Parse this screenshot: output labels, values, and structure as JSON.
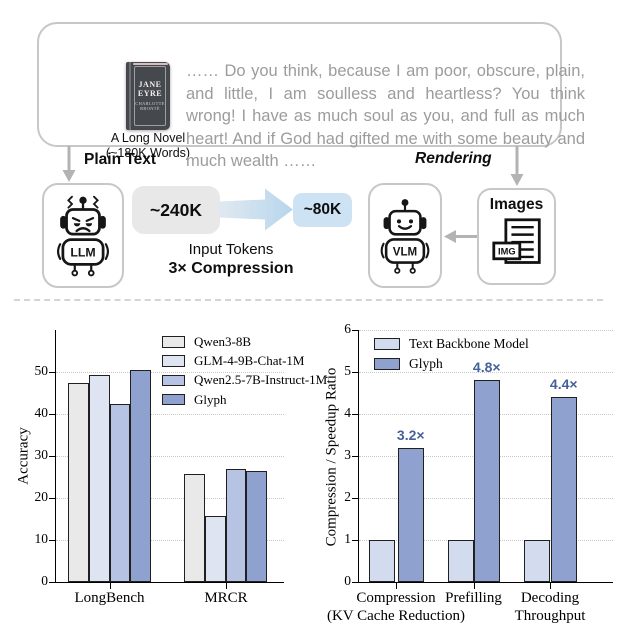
{
  "diagram": {
    "novel": {
      "book_title_line1": "JANE",
      "book_title_line2": "EYRE",
      "book_author": "CHARLOTTE BRONTË",
      "caption_line1": "A Long Novel",
      "caption_line2": "(~180K Words)",
      "excerpt": "…… Do you think, because I am poor, obscure, plain, and little, I am soulless and heartless? You think wrong! I have as much soul as you, and full as much heart! And if God had gifted me with some beauty and much wealth ……"
    },
    "left_branch_label": "Plain Text",
    "right_branch_label": "Rendering",
    "llm_label": "LLM",
    "vlm_label": "VLM",
    "images_label": "Images",
    "img_icon_label": "IMG",
    "tokens_before": "~240K",
    "tokens_after": "~80K",
    "tokens_caption_line1": "Input Tokens",
    "tokens_caption_line2": "3× Compression",
    "colors": {
      "box_border": "#c7c7c7",
      "arrow_gray": "#b3b3b3",
      "token_before_bg": "#e8e8e8",
      "token_after_bg": "#cde2f3",
      "compression_arrow_start": "#e0e9f1",
      "compression_arrow_end": "#b7d6ec"
    }
  },
  "chart_data": [
    {
      "type": "bar",
      "title": "",
      "xlabel": "",
      "ylabel": "Accuracy",
      "categories": [
        "LongBench",
        "MRCR"
      ],
      "series": [
        {
          "name": "Qwen3-8B",
          "color": "#e9e9e9",
          "values": [
            47.5,
            25.8
          ]
        },
        {
          "name": "GLM-4-9B-Chat-1M",
          "color": "#dee4f2",
          "values": [
            49.2,
            15.8
          ]
        },
        {
          "name": "Qwen2.5-7B-Instruct-1M",
          "color": "#b7c3e3",
          "values": [
            42.5,
            26.9
          ]
        },
        {
          "name": "Glyph",
          "color": "#8fa2cf",
          "values": [
            50.5,
            26.4
          ]
        }
      ],
      "ylim": [
        0,
        60
      ],
      "yticks": [
        0,
        10,
        20,
        30,
        40,
        50
      ],
      "grid": "horizontal dotted",
      "legend_position": "upper right"
    },
    {
      "type": "bar",
      "title": "",
      "xlabel": "",
      "ylabel": "Compression / Speedup Ratio",
      "categories": [
        "Compression\n(KV Cache Reduction)",
        "Prefilling",
        "Decoding\nThroughput"
      ],
      "series": [
        {
          "name": "Text Backbone Model",
          "color": "#d3dcef",
          "values": [
            1.0,
            1.0,
            1.0
          ]
        },
        {
          "name": "Glyph",
          "color": "#8fa2cf",
          "values": [
            3.2,
            4.8,
            4.4
          ],
          "value_labels": [
            "3.2×",
            "4.8×",
            "4.4×"
          ]
        }
      ],
      "ylim": [
        0,
        6
      ],
      "yticks": [
        0,
        1,
        2,
        3,
        4,
        5,
        6
      ],
      "grid": "horizontal dotted",
      "legend_position": "upper left",
      "value_label_color": "#45619b"
    }
  ]
}
